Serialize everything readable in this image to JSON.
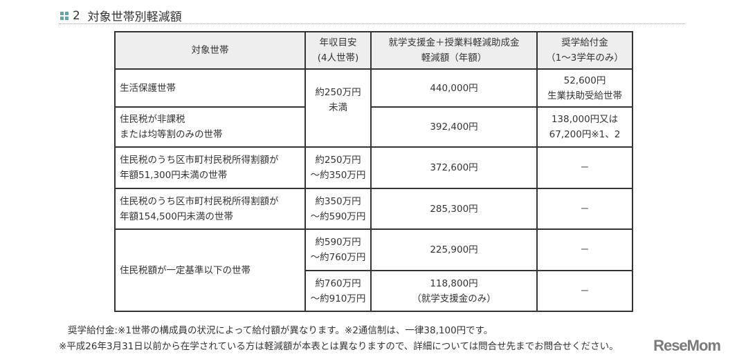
{
  "section": {
    "number": "2",
    "title": "対象世帯別軽減額"
  },
  "table": {
    "headers": [
      "対象世帯",
      "年収目安\n(4人世帯)",
      "就学支援金＋授業料軽減助成金\n軽減額（年額）",
      "奨学給付金\n（1～3学年のみ）"
    ],
    "rows": [
      {
        "target": "生活保護世帯",
        "income": "約250万円\n未満",
        "reduction": "440,000円",
        "scholarship": "52,600円\n生業扶助受給世帯"
      },
      {
        "target": "住民税が非課税\nまたは均等割のみの世帯",
        "reduction": "392,400円",
        "scholarship": "138,000円又は\n67,200円※1、2"
      },
      {
        "target": "住民税のうち区市町村民税所得割額が\n年額51,300円未満の世帯",
        "income": "約250万円\n～約350万円",
        "reduction": "372,600円",
        "scholarship": "－"
      },
      {
        "target": "住民税のうち区市町村民税所得割額が\n年額154,500円未満の世帯",
        "income": "約350万円\n～約590万円",
        "reduction": "285,300円",
        "scholarship": "－"
      },
      {
        "target": "住民税額が一定基準以下の世帯",
        "income": "約590万円\n～約760万円",
        "reduction": "225,900円",
        "scholarship": "－"
      },
      {
        "income": "約760万円\n～約910万円",
        "reduction": "118,800円\n（就学支援金のみ）",
        "scholarship": "－"
      }
    ]
  },
  "notes": [
    "奨学給付金:※1世帯の構成員の状況によって給付額が異なります。※2通信制は、一律38,100円です。",
    "※平成26年3月31日以前から在学されている方は軽減額が本表とは異なりますので、詳細については問合せ先までお問合せください。"
  ],
  "logo": "ReseMom"
}
